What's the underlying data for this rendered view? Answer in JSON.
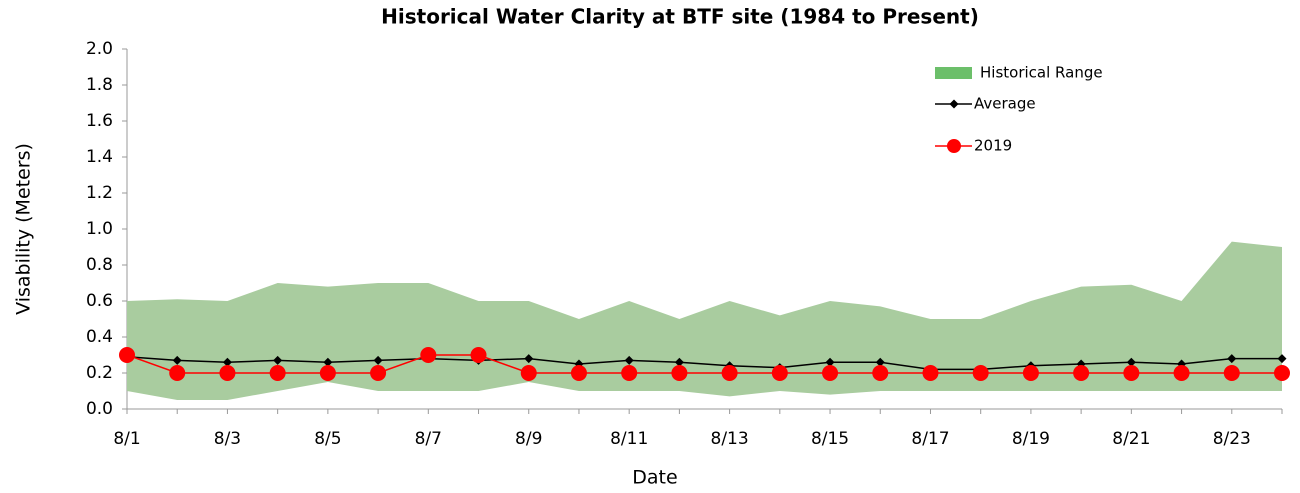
{
  "chart_data": {
    "type": "line",
    "title": "Historical Water Clarity at BTF site (1984 to Present)",
    "x_label": "Date",
    "y_label": "Visability (Meters)",
    "categories": [
      "8/1",
      null,
      "8/3",
      null,
      "8/5",
      null,
      "8/7",
      null,
      "8/9",
      null,
      "8/11",
      null,
      "8/13",
      null,
      "8/15",
      null,
      "8/17",
      null,
      "8/19",
      null,
      "8/21",
      null,
      "8/23",
      null
    ],
    "ylim": [
      0,
      2
    ],
    "yticks": [
      {
        "value": 0,
        "label": "0.0"
      },
      0.2,
      0.4,
      0.6,
      0.8,
      {
        "value": 1,
        "label": "1.0"
      },
      1.2,
      1.4,
      1.6,
      1.8,
      {
        "value": 2,
        "label": "2.0"
      }
    ],
    "series": [
      {
        "name": "Historical Range",
        "type": "range",
        "color": "#a9cc9f",
        "legend_color": "#6cbf6a",
        "low": [
          0.1,
          0.05,
          0.05,
          0.1,
          0.15,
          0.1,
          0.1,
          0.1,
          0.15,
          0.1,
          0.1,
          0.1,
          0.07,
          0.1,
          0.08,
          0.1,
          0.1,
          0.1,
          0.1,
          0.1,
          0.1,
          0.1,
          0.1,
          0.1
        ],
        "high": [
          0.6,
          0.61,
          0.6,
          0.7,
          0.68,
          0.7,
          0.7,
          0.6,
          0.6,
          0.5,
          0.6,
          0.5,
          0.6,
          0.52,
          0.6,
          0.57,
          0.5,
          0.5,
          0.6,
          0.68,
          0.69,
          0.6,
          0.93,
          0.9
        ]
      },
      {
        "name": "Average",
        "type": "line",
        "marker": "diamond",
        "color": "#000000",
        "values": [
          0.29,
          0.27,
          0.26,
          0.27,
          0.26,
          0.27,
          0.28,
          0.27,
          0.28,
          0.25,
          0.27,
          0.26,
          0.24,
          0.23,
          0.26,
          0.26,
          0.22,
          0.22,
          0.24,
          0.25,
          0.26,
          0.25,
          0.28,
          0.28
        ]
      },
      {
        "name": "2019",
        "type": "line",
        "marker": "circle",
        "color": "#ff0000",
        "values": [
          0.3,
          0.2,
          0.2,
          0.2,
          0.2,
          0.2,
          0.3,
          0.3,
          0.2,
          0.2,
          0.2,
          0.2,
          0.2,
          0.2,
          0.2,
          0.2,
          0.2,
          0.2,
          0.2,
          0.2,
          0.2,
          0.2,
          0.2,
          0.2
        ]
      }
    ]
  }
}
